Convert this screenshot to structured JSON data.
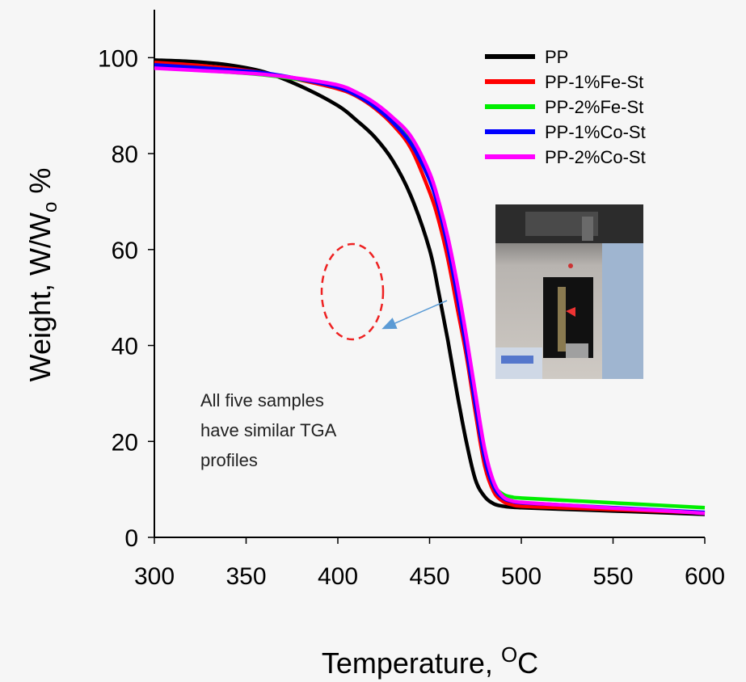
{
  "chart_data": {
    "type": "line",
    "xlabel": "Temperature, ",
    "xlabel_sup": "O",
    "xlabel_unit": "C",
    "ylabel": "Weight, W/W",
    "ylabel_sub": "o",
    "ylabel_unit": " %",
    "xlim": [
      300,
      600
    ],
    "ylim": [
      0,
      110
    ],
    "xticks": [
      300,
      350,
      400,
      450,
      500,
      550,
      600
    ],
    "yticks": [
      0,
      20,
      40,
      60,
      80,
      100
    ],
    "grid": false,
    "legend_position": "top-right",
    "x": [
      300,
      320,
      340,
      360,
      380,
      400,
      410,
      420,
      430,
      440,
      450,
      455,
      460,
      465,
      470,
      475,
      480,
      485,
      490,
      495,
      500,
      520,
      550,
      580,
      600
    ],
    "series": [
      {
        "name": "PP",
        "color": "#000000",
        "values": [
          99.5,
          99.2,
          98.5,
          97.0,
          94.0,
          90.0,
          87.0,
          83.5,
          78.5,
          71.0,
          60.0,
          51.0,
          41.0,
          30.0,
          20.0,
          12.0,
          8.5,
          7.0,
          6.5,
          6.3,
          6.2,
          5.9,
          5.5,
          5.1,
          4.8
        ]
      },
      {
        "name": "PP-1%Fe-St",
        "color": "#ff0000",
        "values": [
          99.0,
          98.5,
          97.8,
          96.8,
          95.3,
          93.5,
          92.0,
          89.5,
          86.0,
          81.0,
          72.0,
          66.0,
          58.0,
          48.0,
          38.0,
          26.0,
          15.0,
          9.5,
          7.5,
          6.8,
          6.5,
          6.2,
          5.8,
          5.4,
          5.1
        ]
      },
      {
        "name": "PP-2%Fe-St",
        "color": "#00ee00",
        "values": [
          98.0,
          97.5,
          97.0,
          96.4,
          95.4,
          94.0,
          92.5,
          90.2,
          87.0,
          82.5,
          75.0,
          69.0,
          61.0,
          51.0,
          40.0,
          28.0,
          17.0,
          11.0,
          9.0,
          8.4,
          8.2,
          7.8,
          7.2,
          6.6,
          6.2
        ]
      },
      {
        "name": "PP-1%Co-St",
        "color": "#0000ff",
        "values": [
          98.5,
          98.0,
          97.5,
          96.8,
          95.5,
          93.8,
          92.2,
          89.8,
          86.5,
          82.0,
          74.5,
          68.5,
          60.5,
          50.5,
          39.5,
          27.5,
          16.5,
          10.5,
          8.2,
          7.5,
          7.2,
          6.8,
          6.2,
          5.6,
          5.2
        ]
      },
      {
        "name": "PP-2%Co-St",
        "color": "#ff00ff",
        "values": [
          97.8,
          97.4,
          97.0,
          96.5,
          95.6,
          94.3,
          92.8,
          90.6,
          87.5,
          83.5,
          76.0,
          70.0,
          62.5,
          53.0,
          42.0,
          30.0,
          18.5,
          11.5,
          8.5,
          7.6,
          7.3,
          6.8,
          6.1,
          5.5,
          5.0
        ]
      }
    ],
    "annotation": {
      "lines": [
        "All five samples",
        "have similar TGA",
        "profiles"
      ],
      "ellipse_color": "#ee2222",
      "arrow_color": "#5b9bd5"
    }
  },
  "photo": {
    "description_icon": "tga-instrument-photo-icon"
  }
}
